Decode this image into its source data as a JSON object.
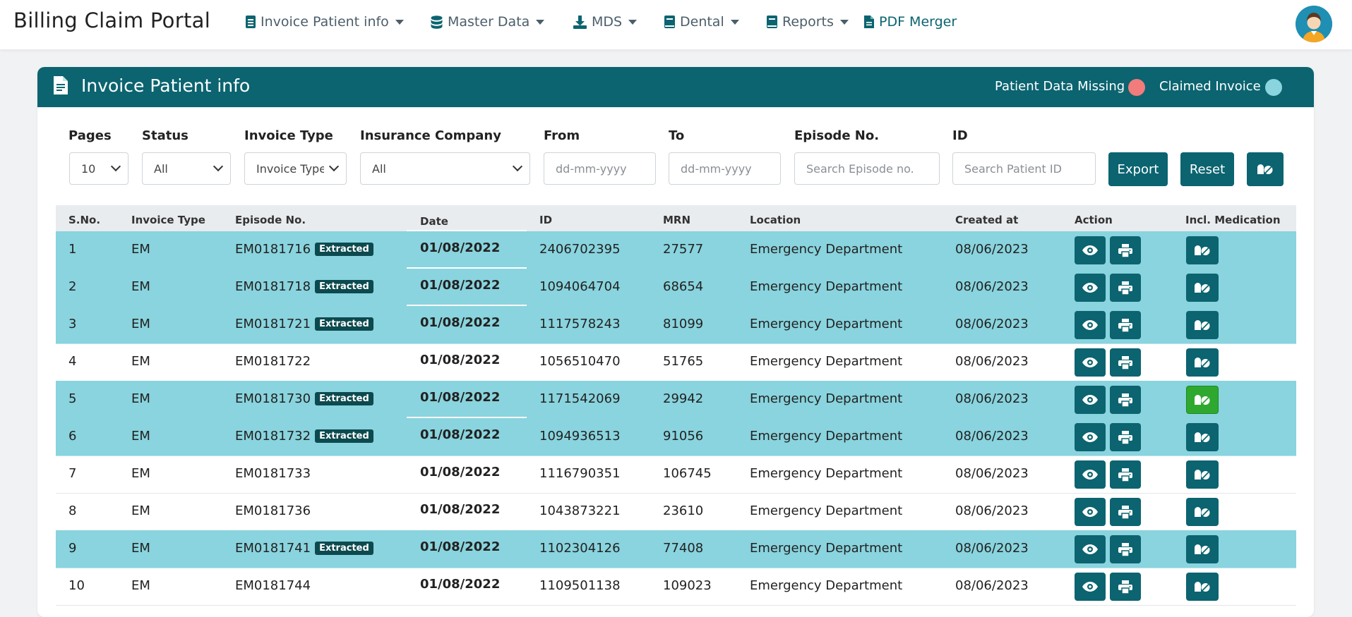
{
  "nav": {
    "brand": "Billing Claim Portal",
    "items": [
      {
        "label": "Invoice Patient info",
        "icon": "document-icon"
      },
      {
        "label": "Master Data",
        "icon": "database-icon"
      },
      {
        "label": "MDS",
        "icon": "download-icon"
      },
      {
        "label": "Dental",
        "icon": "book-icon"
      },
      {
        "label": "Reports",
        "icon": "book-icon"
      },
      {
        "label": "PDF Merger",
        "icon": "pdf-file-icon"
      }
    ]
  },
  "card": {
    "title": "Invoice Patient info",
    "legend": [
      {
        "label": "Patient Data Missing",
        "color": "#f27b7b"
      },
      {
        "label": "Claimed Invoice",
        "color": "#89d4de"
      }
    ]
  },
  "filters": {
    "pages": {
      "label": "Pages",
      "value": "10"
    },
    "status": {
      "label": "Status",
      "value": "All"
    },
    "invoice_type": {
      "label": "Invoice Type",
      "value": "Invoice Type"
    },
    "insurance": {
      "label": "Insurance Company",
      "value": "All"
    },
    "from": {
      "label": "From",
      "placeholder": "dd-mm-yyyy"
    },
    "to": {
      "label": "To",
      "placeholder": "dd-mm-yyyy"
    },
    "episode": {
      "label": "Episode No.",
      "placeholder": "Search Episode no."
    },
    "id": {
      "label": "ID",
      "placeholder": "Search Patient ID"
    },
    "export_label": "Export",
    "reset_label": "Reset"
  },
  "table": {
    "headers": [
      "S.No.",
      "Invoice Type",
      "Episode No.",
      "Date",
      "ID",
      "MRN",
      "Location",
      "Created at",
      "Action",
      "Incl. Medication"
    ],
    "extracted_label": "Extracted",
    "rows": [
      {
        "sno": "1",
        "type": "EM",
        "episode": "EM0181716",
        "extracted": true,
        "date": "01/08/2022",
        "id": "2406702395",
        "mrn": "27577",
        "location": "Emergency Department",
        "created": "08/06/2023",
        "highlight": true,
        "med_active": false
      },
      {
        "sno": "2",
        "type": "EM",
        "episode": "EM0181718",
        "extracted": true,
        "date": "01/08/2022",
        "id": "1094064704",
        "mrn": "68654",
        "location": "Emergency Department",
        "created": "08/06/2023",
        "highlight": true,
        "med_active": false
      },
      {
        "sno": "3",
        "type": "EM",
        "episode": "EM0181721",
        "extracted": true,
        "date": "01/08/2022",
        "id": "1117578243",
        "mrn": "81099",
        "location": "Emergency Department",
        "created": "08/06/2023",
        "highlight": true,
        "med_active": false
      },
      {
        "sno": "4",
        "type": "EM",
        "episode": "EM0181722",
        "extracted": false,
        "date": "01/08/2022",
        "id": "1056510470",
        "mrn": "51765",
        "location": "Emergency Department",
        "created": "08/06/2023",
        "highlight": false,
        "med_active": false
      },
      {
        "sno": "5",
        "type": "EM",
        "episode": "EM0181730",
        "extracted": true,
        "date": "01/08/2022",
        "id": "1171542069",
        "mrn": "29942",
        "location": "Emergency Department",
        "created": "08/06/2023",
        "highlight": true,
        "med_active": true
      },
      {
        "sno": "6",
        "type": "EM",
        "episode": "EM0181732",
        "extracted": true,
        "date": "01/08/2022",
        "id": "1094936513",
        "mrn": "91056",
        "location": "Emergency Department",
        "created": "08/06/2023",
        "highlight": true,
        "med_active": false
      },
      {
        "sno": "7",
        "type": "EM",
        "episode": "EM0181733",
        "extracted": false,
        "date": "01/08/2022",
        "id": "1116790351",
        "mrn": "106745",
        "location": "Emergency Department",
        "created": "08/06/2023",
        "highlight": false,
        "med_active": false
      },
      {
        "sno": "8",
        "type": "EM",
        "episode": "EM0181736",
        "extracted": false,
        "date": "01/08/2022",
        "id": "1043873221",
        "mrn": "23610",
        "location": "Emergency Department",
        "created": "08/06/2023",
        "highlight": false,
        "med_active": false
      },
      {
        "sno": "9",
        "type": "EM",
        "episode": "EM0181741",
        "extracted": true,
        "date": "01/08/2022",
        "id": "1102304126",
        "mrn": "77408",
        "location": "Emergency Department",
        "created": "08/06/2023",
        "highlight": true,
        "med_active": false
      },
      {
        "sno": "10",
        "type": "EM",
        "episode": "EM0181744",
        "extracted": false,
        "date": "01/08/2022",
        "id": "1109501138",
        "mrn": "109023",
        "location": "Emergency Department",
        "created": "08/06/2023",
        "highlight": false,
        "med_active": false
      }
    ]
  }
}
